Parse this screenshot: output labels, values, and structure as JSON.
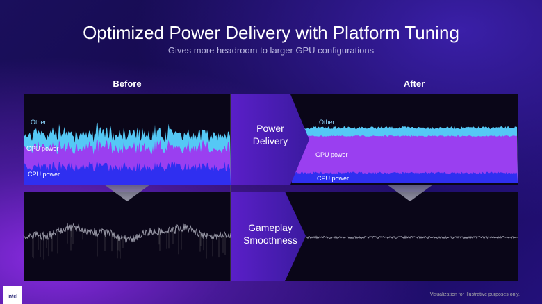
{
  "header": {
    "title": "Optimized Power Delivery with Platform Tuning",
    "subtitle": "Gives more headroom to larger GPU configurations"
  },
  "before": {
    "heading": "Before",
    "labels": {
      "other": "Other",
      "gpu": "GPU power",
      "cpu": "CPU power"
    }
  },
  "after": {
    "heading": "After",
    "labels": {
      "other": "Other",
      "gpu": "GPU power",
      "cpu": "CPU power"
    }
  },
  "stages": {
    "power": "Power Delivery",
    "gameplay": "Gameplay Smoothness"
  },
  "footer": {
    "note": "Visualization for illustrative purposes only.",
    "brand": "intel"
  }
}
